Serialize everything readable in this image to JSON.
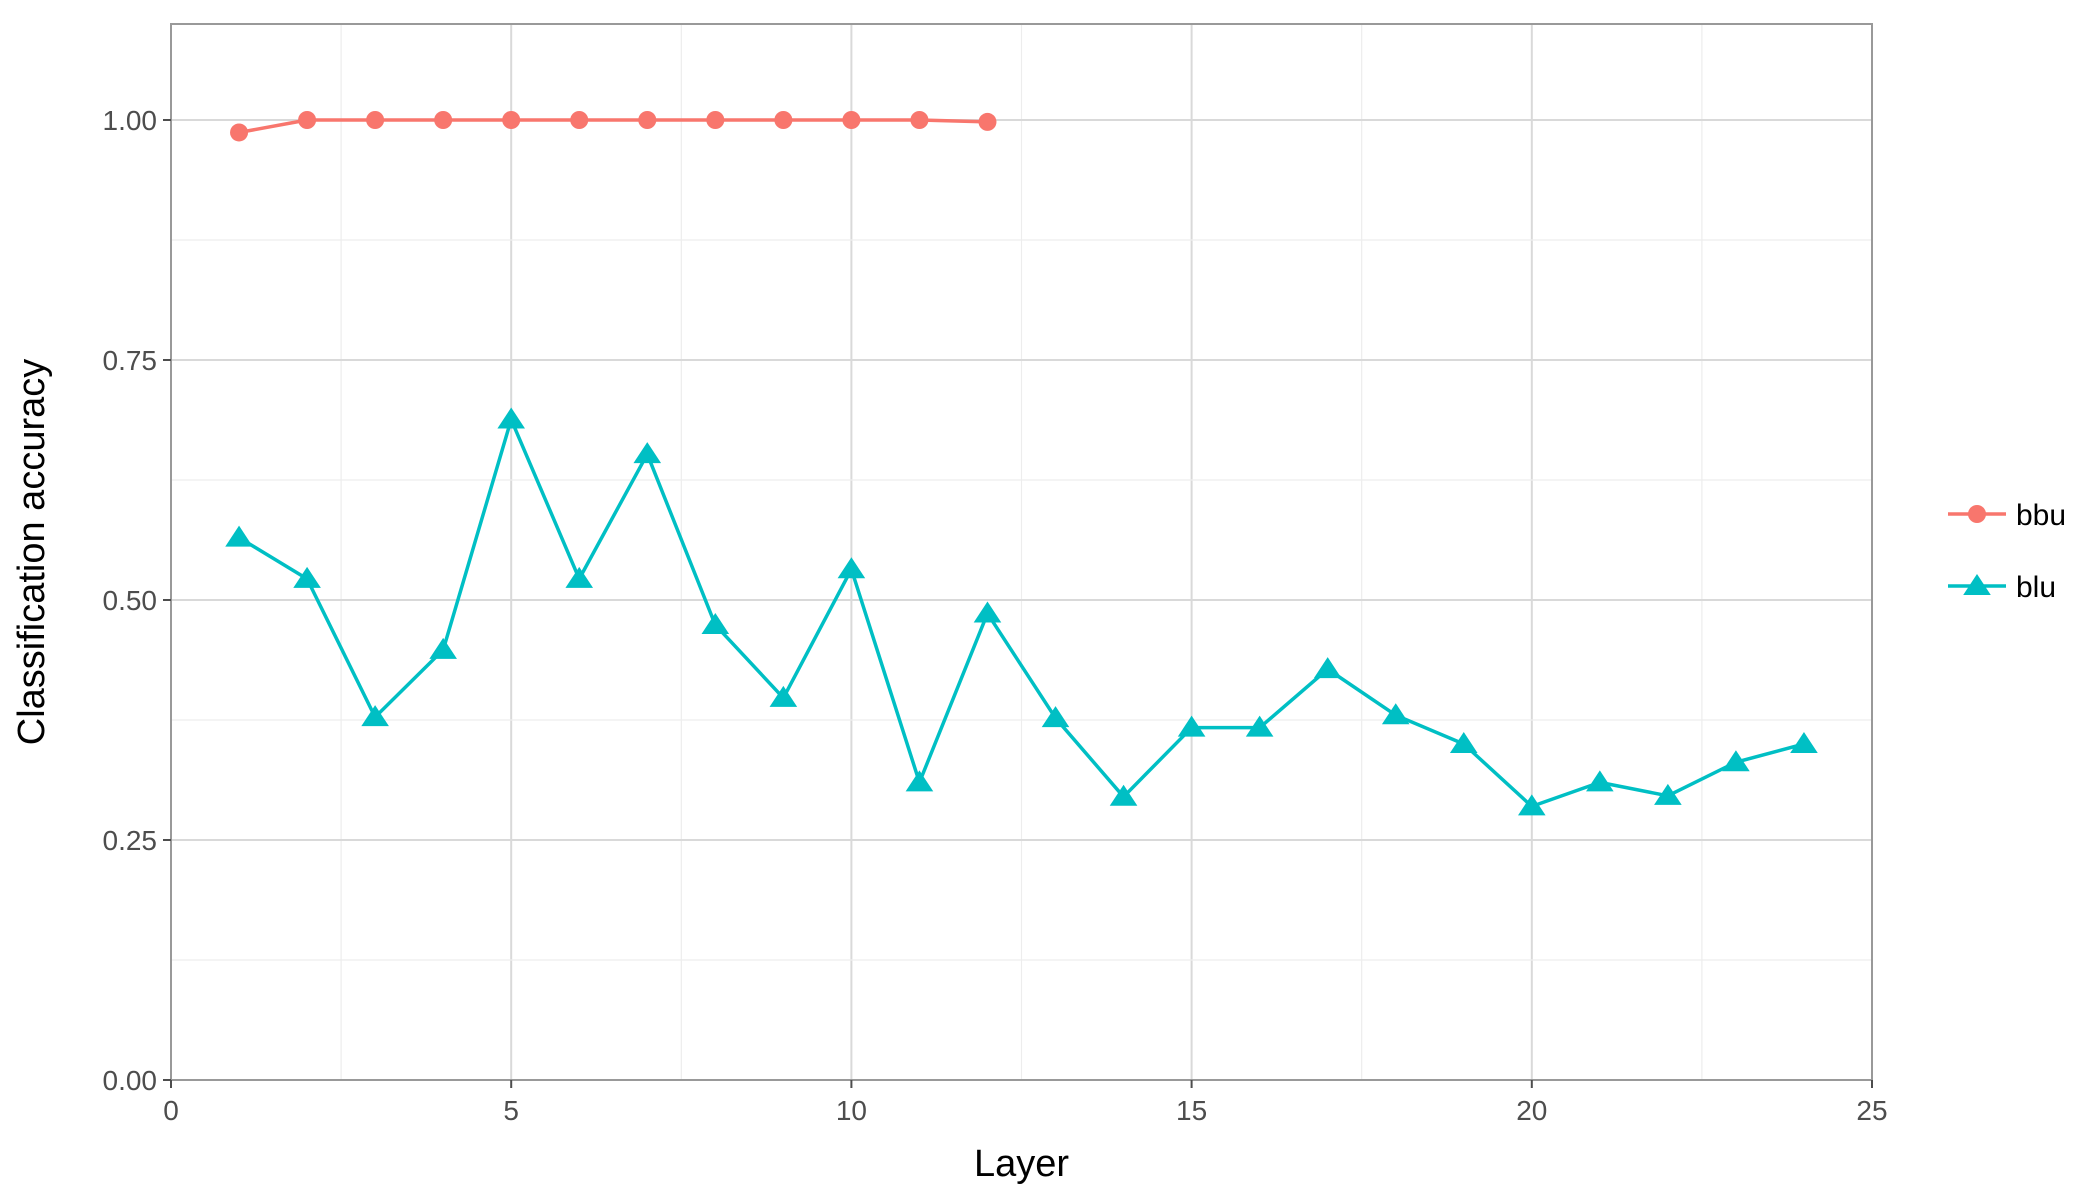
{
  "chart_data": {
    "type": "line",
    "title": "",
    "xlabel": "Layer",
    "ylabel": "Classification accuracy",
    "xlim": [
      0,
      25
    ],
    "ylim": [
      0,
      1.1
    ],
    "xticks": [
      "0",
      "5",
      "10",
      "15",
      "20",
      "25"
    ],
    "yticks": [
      "0.00",
      "0.25",
      "0.50",
      "0.75",
      "1.00"
    ],
    "grid": true,
    "legend_position": "right",
    "series": [
      {
        "name": "bbu",
        "color": "#F8766D",
        "marker": "circle",
        "x": [
          1,
          2,
          3,
          4,
          5,
          6,
          7,
          8,
          9,
          10,
          11,
          12
        ],
        "values": [
          0.987,
          1.0,
          1.0,
          1.0,
          1.0,
          1.0,
          1.0,
          1.0,
          1.0,
          1.0,
          1.0,
          0.998
        ]
      },
      {
        "name": "blu",
        "color": "#00BFC4",
        "marker": "triangle",
        "x": [
          1,
          2,
          3,
          4,
          5,
          6,
          7,
          8,
          9,
          10,
          11,
          12,
          13,
          14,
          15,
          16,
          17,
          18,
          19,
          20,
          21,
          22,
          23,
          24
        ],
        "values": [
          0.565,
          0.522,
          0.378,
          0.448,
          0.688,
          0.522,
          0.652,
          0.474,
          0.398,
          0.532,
          0.31,
          0.486,
          0.377,
          0.295,
          0.367,
          0.367,
          0.428,
          0.38,
          0.35,
          0.285,
          0.31,
          0.296,
          0.331,
          0.35
        ]
      }
    ]
  }
}
